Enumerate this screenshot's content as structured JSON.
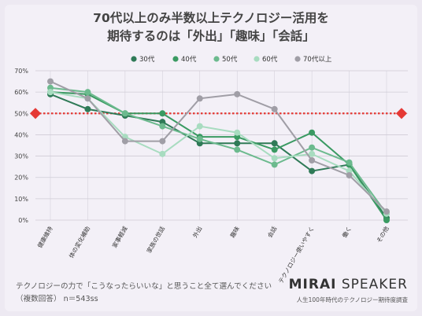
{
  "header": {
    "title_line1": "70代以上のみ半数以上テクノロジー活用を",
    "title_line2": "期待するのは「外出」「趣味」「会話」"
  },
  "footer": {
    "question": "テクノロジーの力で「こうなったらいいな」と思うこと全て選んでください",
    "note": "（複数回答） n＝543ss",
    "brand_bold": "MIRAI",
    "brand_rest": " SPEAKER",
    "brand_sub": "人生100年時代のテクノロジー期待度調査"
  },
  "chart_data": {
    "type": "line",
    "categories": [
      "健康維持",
      "体の変化補助",
      "家事軽減",
      "家族の世話",
      "外出",
      "趣味",
      "会話",
      "テクノロジー使いやすく",
      "働く",
      "その他"
    ],
    "yticks": [
      "0%",
      "10%",
      "20%",
      "30%",
      "40%",
      "50%",
      "60%",
      "70%"
    ],
    "ylim": [
      0,
      70
    ],
    "reference_line": 50,
    "grid": true,
    "legend_position": "top",
    "series": [
      {
        "name": "30代",
        "color": "#2f7a57",
        "values": [
          59,
          52,
          49,
          46,
          36,
          36,
          36,
          23,
          26,
          1
        ]
      },
      {
        "name": "40代",
        "color": "#3a9a62",
        "values": [
          60,
          59,
          50,
          50,
          39,
          39,
          33,
          41,
          26,
          0
        ]
      },
      {
        "name": "50代",
        "color": "#6cba8e",
        "values": [
          62,
          60,
          50,
          44,
          38,
          33,
          26,
          34,
          27,
          3
        ]
      },
      {
        "name": "60代",
        "color": "#a8dcc0",
        "values": [
          60,
          57,
          39,
          31,
          44,
          41,
          29,
          31,
          23,
          3
        ]
      },
      {
        "name": "70代以上",
        "color": "#a09ea6",
        "values": [
          65,
          57,
          37,
          37,
          57,
          59,
          52,
          28,
          21,
          4
        ]
      }
    ],
    "colors": {
      "reference": "#e53935",
      "grid": "#cfcbd6"
    }
  }
}
